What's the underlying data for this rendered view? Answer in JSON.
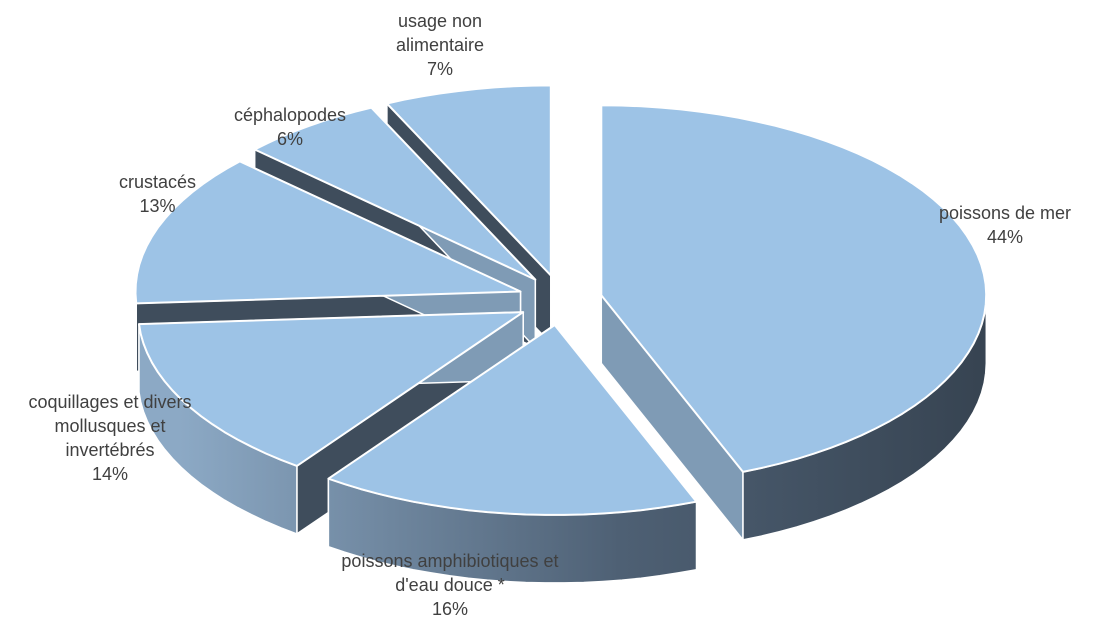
{
  "chart_data": {
    "type": "pie",
    "style": "3d-exploded",
    "title": "",
    "slices": [
      {
        "name": "poissons de mer",
        "value": 44,
        "label": "44%"
      },
      {
        "name": "poissons amphibiotiques et d'eau douce *",
        "value": 16,
        "label": "16%"
      },
      {
        "name": "coquillages et divers mollusques et invertébrés",
        "value": 14,
        "label": "14%"
      },
      {
        "name": "crustacés",
        "value": 13,
        "label": "13%"
      },
      {
        "name": "céphalopodes",
        "value": 6,
        "label": "6%"
      },
      {
        "name": "usage non alimentaire",
        "value": 7,
        "label": "7%"
      }
    ],
    "legend": "none",
    "colors": {
      "top": "#9dc3e6",
      "side_dark": "#3f4d5c",
      "side_light": "#7f9bb5",
      "edge": "#ffffff"
    }
  }
}
